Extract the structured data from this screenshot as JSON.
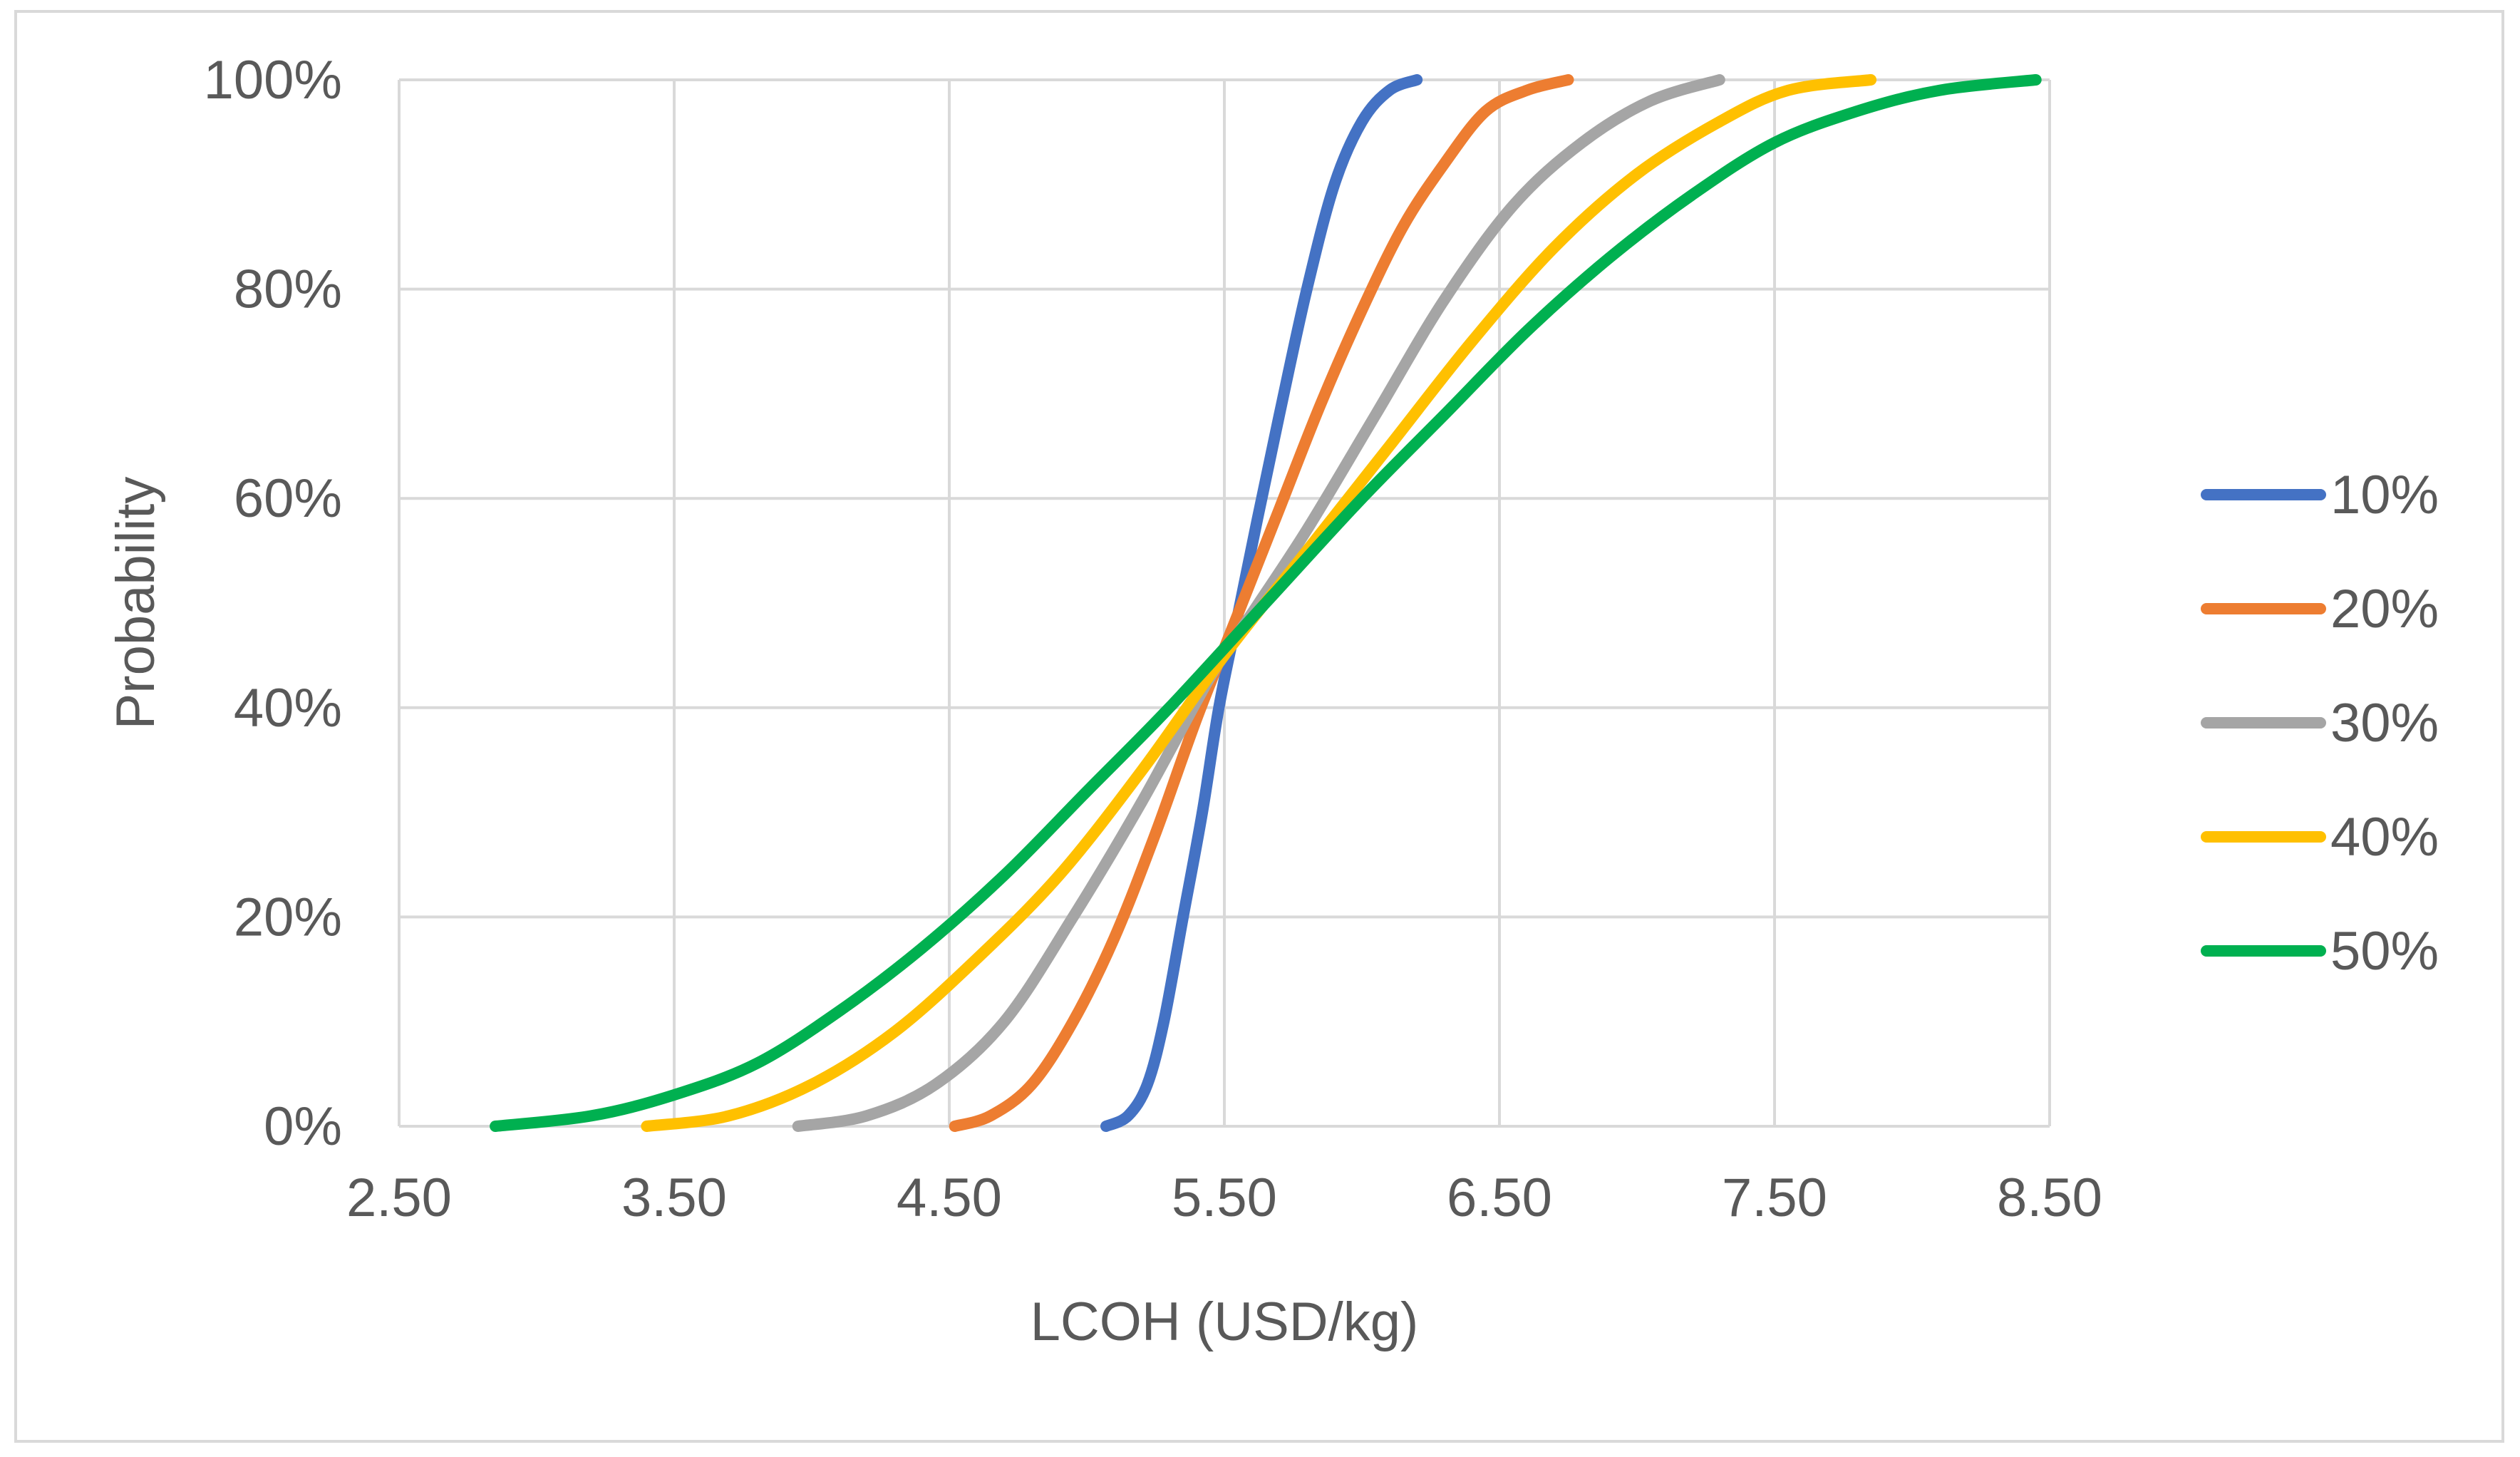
{
  "chart_data": {
    "type": "line",
    "title": "",
    "xlabel": "LCOH (USD/kg)",
    "ylabel": "Probability",
    "xlim": [
      2.5,
      8.5
    ],
    "ylim": [
      0,
      100
    ],
    "x_ticks": [
      "2.50",
      "3.50",
      "4.50",
      "5.50",
      "6.50",
      "7.50",
      "8.50"
    ],
    "y_ticks": [
      "0%",
      "20%",
      "40%",
      "60%",
      "80%",
      "100%"
    ],
    "grid": true,
    "legend_position": "right",
    "series": [
      {
        "name": "10%",
        "color": "#4472c4",
        "x": [
          5.07,
          5.15,
          5.22,
          5.28,
          5.35,
          5.42,
          5.48,
          5.55,
          5.62,
          5.7,
          5.8,
          5.9,
          6.0,
          6.1,
          6.2
        ],
        "y": [
          0,
          1,
          4,
          10,
          20,
          30,
          40,
          49,
          58,
          68,
          80,
          90,
          96,
          99,
          100
        ]
      },
      {
        "name": "20%",
        "color": "#ed7d31",
        "x": [
          4.52,
          4.65,
          4.8,
          4.95,
          5.1,
          5.25,
          5.4,
          5.55,
          5.7,
          5.85,
          6.0,
          6.15,
          6.3,
          6.45,
          6.6,
          6.75
        ],
        "y": [
          0,
          1,
          4,
          10,
          18,
          28,
          39,
          49,
          59,
          69,
          78,
          86,
          92,
          97,
          99,
          100
        ]
      },
      {
        "name": "30%",
        "color": "#a5a5a5",
        "x": [
          3.95,
          4.2,
          4.45,
          4.7,
          4.95,
          5.2,
          5.45,
          5.6,
          5.8,
          6.05,
          6.3,
          6.55,
          6.8,
          7.05,
          7.3
        ],
        "y": [
          0,
          1,
          4,
          10,
          20,
          31,
          43,
          49,
          57,
          68,
          79,
          88,
          94,
          98,
          100
        ]
      },
      {
        "name": "40%",
        "color": "#ffc000",
        "x": [
          3.4,
          3.7,
          4.0,
          4.3,
          4.6,
          4.9,
          5.2,
          5.5,
          5.8,
          6.1,
          6.4,
          6.7,
          7.0,
          7.3,
          7.55,
          7.85
        ],
        "y": [
          0,
          1,
          4,
          9,
          16,
          24,
          34,
          45,
          55,
          65,
          75,
          84,
          91,
          96,
          99,
          100
        ]
      },
      {
        "name": "50%",
        "color": "#00b050",
        "x": [
          2.85,
          3.2,
          3.5,
          3.8,
          4.1,
          4.4,
          4.7,
          5.0,
          5.3,
          5.65,
          6.0,
          6.3,
          6.6,
          6.9,
          7.2,
          7.5,
          7.8,
          8.1,
          8.45
        ],
        "y": [
          0,
          1,
          3,
          6,
          11,
          17,
          24,
          32,
          40,
          50,
          60,
          68,
          76,
          83,
          89,
          94,
          97,
          99,
          100
        ]
      }
    ]
  }
}
